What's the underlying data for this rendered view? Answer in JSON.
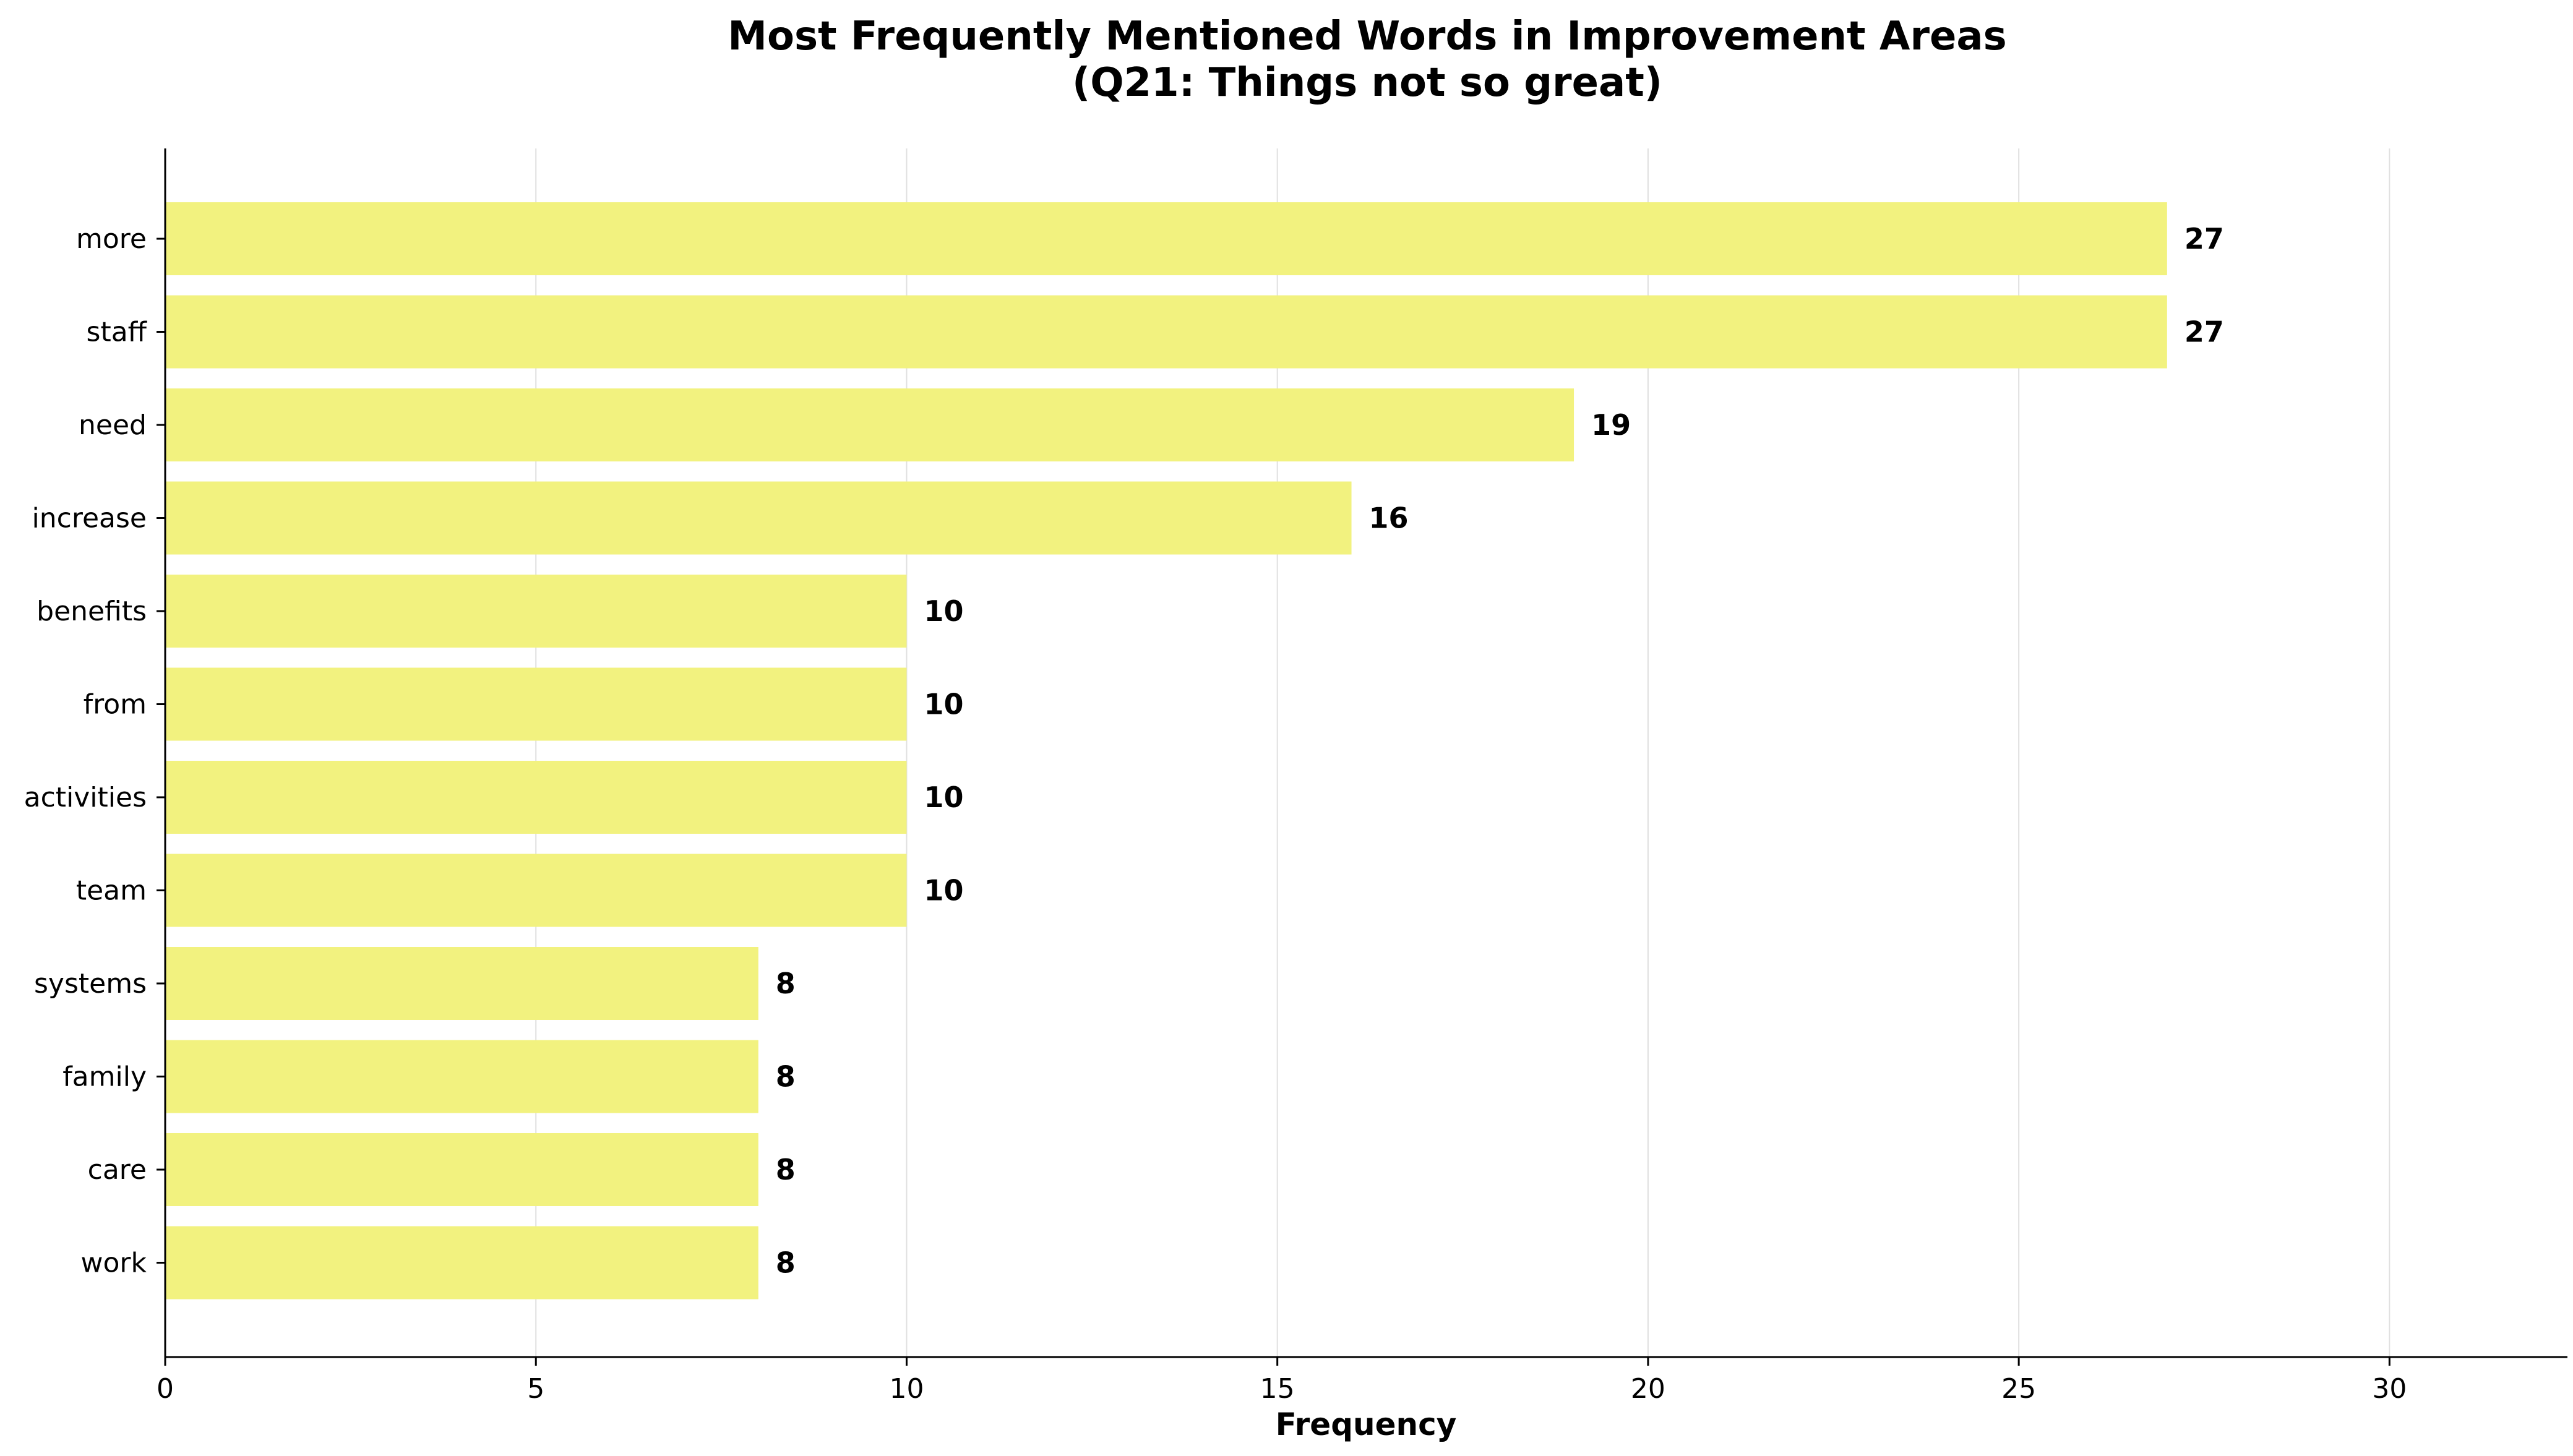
{
  "chart_data": {
    "type": "bar",
    "orientation": "horizontal",
    "title": "Most Frequently Mentioned Words in Improvement Areas",
    "subtitle": "(Q21: Things not so great)",
    "xlabel": "Frequency",
    "ylabel": "",
    "categories": [
      "more",
      "staff",
      "need",
      "increase",
      "benefits",
      "from",
      "activities",
      "team",
      "systems",
      "family",
      "care",
      "work"
    ],
    "values": [
      27,
      27,
      19,
      16,
      10,
      10,
      10,
      10,
      8,
      8,
      8,
      8
    ],
    "data_labels": [
      "27",
      "27",
      "19",
      "16",
      "10",
      "10",
      "10",
      "10",
      "8",
      "8",
      "8",
      "8"
    ],
    "xlim": [
      0,
      32.4
    ],
    "xticks": [
      0,
      5,
      10,
      15,
      20,
      25,
      30
    ],
    "xtick_labels": [
      "0",
      "5",
      "10",
      "15",
      "20",
      "25",
      "30"
    ],
    "grid": "vertical",
    "legend": "none",
    "colors": {
      "bar": "#f2f27f",
      "grid": "#e0e0e0",
      "axis": "#000000",
      "text": "#000000"
    }
  }
}
